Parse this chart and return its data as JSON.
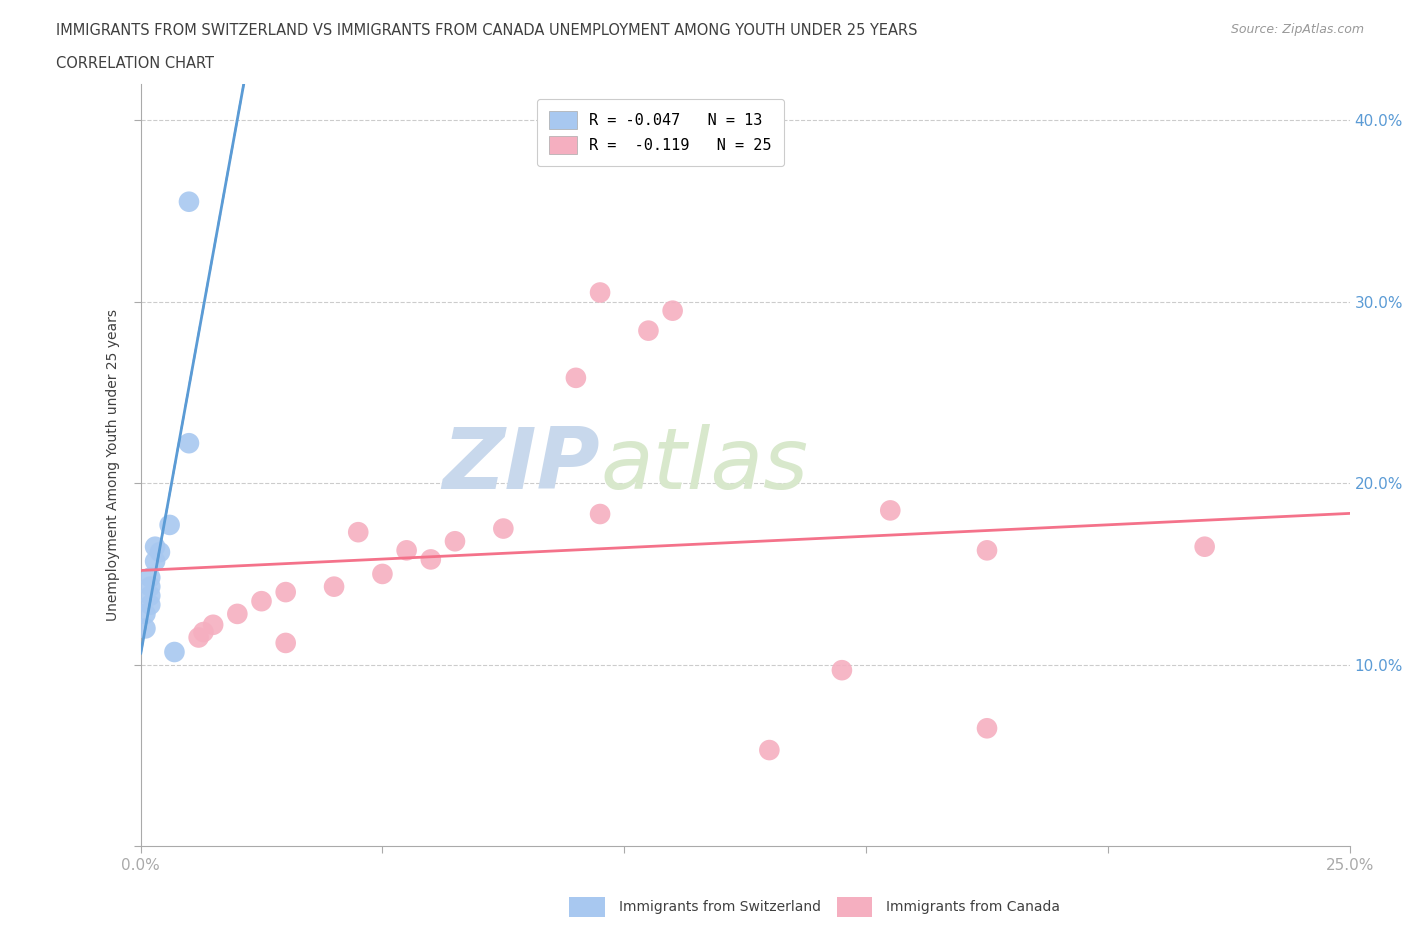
{
  "title_line1": "IMMIGRANTS FROM SWITZERLAND VS IMMIGRANTS FROM CANADA UNEMPLOYMENT AMONG YOUTH UNDER 25 YEARS",
  "title_line2": "CORRELATION CHART",
  "source_text": "Source: ZipAtlas.com",
  "ylabel": "Unemployment Among Youth under 25 years",
  "xlim": [
    0.0,
    0.25
  ],
  "ylim": [
    0.0,
    0.42
  ],
  "watermark_zip": "ZIP",
  "watermark_atlas": "atlas",
  "legend_label_swiss": "R = -0.047   N = 13",
  "legend_label_canada": "R =  -0.119   N = 25",
  "switzerland_points": [
    [
      0.01,
      0.355
    ],
    [
      0.01,
      0.222
    ],
    [
      0.006,
      0.177
    ],
    [
      0.003,
      0.165
    ],
    [
      0.004,
      0.162
    ],
    [
      0.003,
      0.157
    ],
    [
      0.002,
      0.148
    ],
    [
      0.002,
      0.143
    ],
    [
      0.002,
      0.138
    ],
    [
      0.002,
      0.133
    ],
    [
      0.001,
      0.128
    ],
    [
      0.001,
      0.12
    ],
    [
      0.007,
      0.107
    ]
  ],
  "canada_points": [
    [
      0.095,
      0.305
    ],
    [
      0.11,
      0.295
    ],
    [
      0.105,
      0.284
    ],
    [
      0.09,
      0.258
    ],
    [
      0.095,
      0.183
    ],
    [
      0.075,
      0.175
    ],
    [
      0.065,
      0.168
    ],
    [
      0.06,
      0.158
    ],
    [
      0.05,
      0.15
    ],
    [
      0.04,
      0.143
    ],
    [
      0.03,
      0.14
    ],
    [
      0.025,
      0.135
    ],
    [
      0.02,
      0.128
    ],
    [
      0.015,
      0.122
    ],
    [
      0.013,
      0.118
    ],
    [
      0.012,
      0.115
    ],
    [
      0.03,
      0.112
    ],
    [
      0.045,
      0.173
    ],
    [
      0.055,
      0.163
    ],
    [
      0.155,
      0.185
    ],
    [
      0.175,
      0.163
    ],
    [
      0.145,
      0.097
    ],
    [
      0.13,
      0.053
    ],
    [
      0.175,
      0.065
    ],
    [
      0.22,
      0.165
    ]
  ],
  "swiss_line_color": "#5b9bd5",
  "canada_line_color": "#f4728a",
  "swiss_scatter_color": "#a8c8f0",
  "canada_scatter_color": "#f5afc0",
  "grid_color": "#cccccc",
  "background_color": "#ffffff",
  "title_color": "#404040",
  "axis_color": "#aaaaaa",
  "tick_color": "#5b9bd5",
  "watermark_color_zip": "#c8d8ec",
  "watermark_color_atlas": "#d8e8cc"
}
